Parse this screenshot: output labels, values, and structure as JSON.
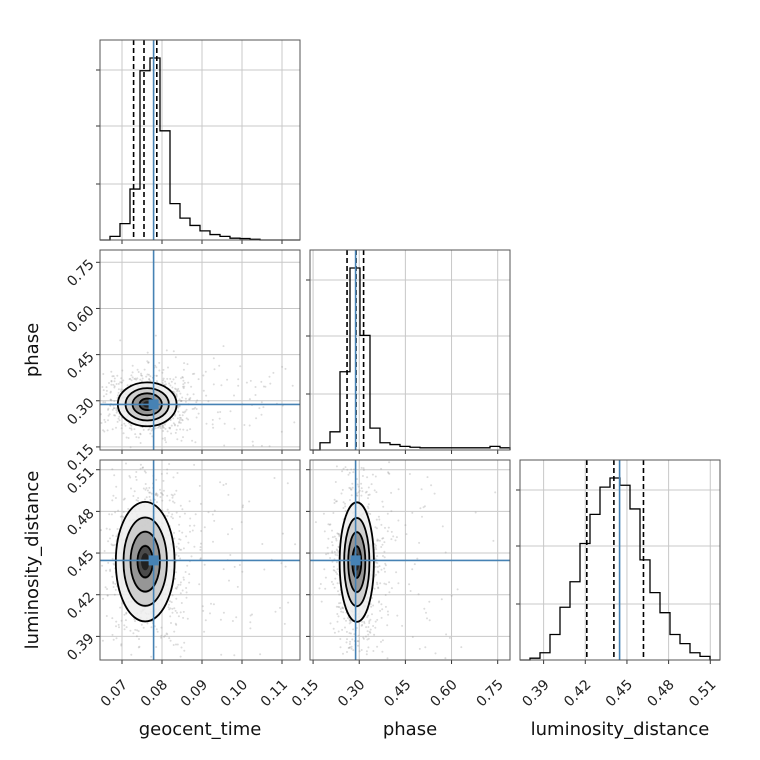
{
  "chart_data": {
    "type": "corner",
    "parameters": [
      "geocent_time",
      "phase",
      "luminosity_distance"
    ],
    "axis_labels": {
      "x": [
        "geocent_time",
        "phase",
        "luminosity_distance"
      ],
      "y": [
        "phase",
        "luminosity_distance"
      ]
    },
    "ranges": {
      "geocent_time": [
        0.0645,
        0.1145
      ],
      "phase": [
        0.14,
        0.79
      ],
      "luminosity_distance": [
        0.373,
        0.517
      ]
    },
    "ticks": {
      "geocent_time": [
        0.07,
        0.08,
        0.09,
        0.1,
        0.11
      ],
      "phase": [
        0.15,
        0.3,
        0.45,
        0.6,
        0.75
      ],
      "luminosity_distance": [
        0.39,
        0.42,
        0.45,
        0.48,
        0.51
      ]
    },
    "tick_labels": {
      "geocent_time": [
        "0.07",
        "0.08",
        "0.09",
        "0.10",
        "0.11"
      ],
      "phase": [
        "0.15",
        "0.30",
        "0.45",
        "0.60",
        "0.75"
      ],
      "luminosity_distance": [
        "0.39",
        "0.42",
        "0.45",
        "0.48",
        "0.51"
      ]
    },
    "truths": {
      "geocent_time": 0.0779,
      "phase": 0.2882,
      "luminosity_distance": 0.4447
    },
    "histograms": {
      "geocent_time": {
        "edges": [
          0.0645,
          0.067,
          0.0695,
          0.072,
          0.0745,
          0.077,
          0.0795,
          0.082,
          0.0845,
          0.087,
          0.0895,
          0.092,
          0.0945,
          0.097,
          0.0995,
          0.102,
          0.1045,
          0.107,
          0.1095,
          0.112,
          0.1145
        ],
        "counts": [
          0,
          0.02,
          0.09,
          0.28,
          0.93,
          1.0,
          0.6,
          0.2,
          0.12,
          0.08,
          0.05,
          0.03,
          0.02,
          0.01,
          0.008,
          0.004,
          0,
          0,
          0,
          0
        ],
        "quantiles": [
          0.0729,
          0.0755,
          0.0787
        ]
      },
      "phase": {
        "edges": [
          0.14,
          0.1725,
          0.205,
          0.2375,
          0.27,
          0.3025,
          0.335,
          0.3675,
          0.4,
          0.4325,
          0.465,
          0.4975,
          0.53,
          0.5625,
          0.595,
          0.6275,
          0.66,
          0.6925,
          0.725,
          0.7575,
          0.79
        ],
        "counts": [
          0,
          0.04,
          0.1,
          0.43,
          1.0,
          0.63,
          0.12,
          0.04,
          0.03,
          0.02,
          0.015,
          0.012,
          0.012,
          0.012,
          0.012,
          0.012,
          0.012,
          0.012,
          0.02,
          0.012
        ],
        "quantiles": [
          0.2604,
          0.2896,
          0.3142
        ]
      },
      "luminosity_distance": {
        "edges": [
          0.373,
          0.3802,
          0.3874,
          0.3946,
          0.4018,
          0.409,
          0.4162,
          0.4234,
          0.4306,
          0.4378,
          0.445,
          0.4522,
          0.4594,
          0.4666,
          0.4738,
          0.481,
          0.4882,
          0.4954,
          0.5026,
          0.5098,
          0.517
        ],
        "counts": [
          0,
          0.01,
          0.04,
          0.14,
          0.29,
          0.43,
          0.64,
          0.8,
          0.95,
          1.0,
          0.96,
          0.83,
          0.55,
          0.37,
          0.26,
          0.14,
          0.09,
          0.04,
          0.02,
          0
        ],
        "quantiles": [
          0.4211,
          0.4406,
          0.4619
        ]
      }
    },
    "contours_2d": {
      "phase_vs_geocent_time": {
        "center": [
          0.0763,
          0.2885
        ],
        "spread": [
          0.0035,
          0.034
        ]
      },
      "luminosity_distance_vs_geocent_time": {
        "center": [
          0.0758,
          0.4438
        ],
        "spread": [
          0.0035,
          0.0205
        ]
      },
      "luminosity_distance_vs_phase": {
        "center": [
          0.292,
          0.4435
        ],
        "spread": [
          0.0265,
          0.0205
        ]
      }
    },
    "grid": true
  }
}
